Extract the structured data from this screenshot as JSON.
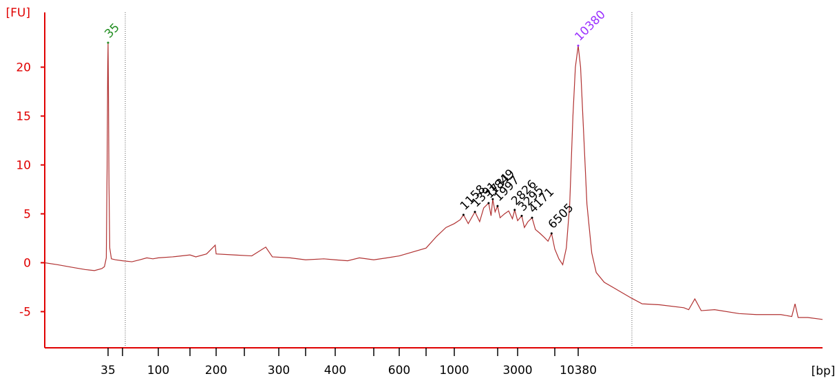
{
  "chart_data": {
    "type": "line",
    "y_label": "[FU]",
    "x_label": "[bp]",
    "ylim": [
      -8.7,
      25.6
    ],
    "yticks": [
      -5,
      0,
      5,
      10,
      15,
      20
    ],
    "xlim": [
      7.3,
      600000
    ],
    "xticks": [
      35,
      100,
      200,
      300,
      400,
      600,
      1000,
      3000,
      10380
    ],
    "xminorticks": [
      50,
      150,
      250,
      350,
      500,
      700,
      2000,
      7000
    ],
    "axis_color": "#e00000",
    "series": [
      {
        "color": "#b03030",
        "x": [
          7.3,
          10,
          15,
          20,
          25,
          30,
          32,
          33.5,
          34.2,
          34.7,
          35,
          35.3,
          35.8,
          36.5,
          38,
          42,
          50,
          60,
          70,
          80,
          90,
          100,
          120,
          150,
          160,
          180,
          198,
          200,
          230,
          260,
          280,
          290,
          320,
          350,
          380,
          400,
          430,
          460,
          500,
          550,
          600,
          700,
          800,
          900,
          1000,
          1100,
          1158,
          1250,
          1391,
          1500,
          1600,
          1731,
          1800,
          1849,
          1920,
          1997,
          2100,
          2300,
          2500,
          2700,
          2826,
          3000,
          3295,
          3500,
          3800,
          4171,
          4500,
          5000,
          5500,
          6000,
          6505,
          7000,
          7500,
          8000,
          8500,
          9000,
          9500,
          9900,
          10380,
          10800,
          11300,
          12000,
          13000,
          14000,
          16000,
          20000,
          25000,
          30000,
          40000,
          60000,
          65000,
          72000,
          80000,
          100000,
          150000,
          200000,
          300000,
          360000,
          380000,
          400000,
          470000,
          600000
        ],
        "values": [
          0.0,
          -0.2,
          -0.5,
          -0.7,
          -0.8,
          -0.6,
          -0.4,
          0.5,
          10,
          20,
          22.5,
          18,
          8,
          1.5,
          0.4,
          0.3,
          0.2,
          0.1,
          0.3,
          0.5,
          0.4,
          0.5,
          0.6,
          0.8,
          0.6,
          0.9,
          1.8,
          0.9,
          0.8,
          0.7,
          1.6,
          0.6,
          0.5,
          0.3,
          0.4,
          0.3,
          0.2,
          0.5,
          0.3,
          0.5,
          0.7,
          1.5,
          2.7,
          3.6,
          4.0,
          4.4,
          4.9,
          4.0,
          5.2,
          4.2,
          5.6,
          6.1,
          4.8,
          6.5,
          5.2,
          5.8,
          4.6,
          5.0,
          5.3,
          4.5,
          5.4,
          4.3,
          4.8,
          3.6,
          4.2,
          4.6,
          3.4,
          3.0,
          2.6,
          2.2,
          3.0,
          1.4,
          0.4,
          -0.2,
          1.5,
          6,
          15,
          20,
          22.2,
          20,
          14,
          6,
          1,
          -1,
          -2,
          -2.8,
          -3.6,
          -4.2,
          -4.3,
          -4.6,
          -4.8,
          -3.7,
          -4.9,
          -4.8,
          -5.2,
          -5.3,
          -5.3,
          -5.5,
          -4.2,
          -5.6,
          -5.6,
          -5.8
        ]
      }
    ],
    "peaks": {
      "x": [
        35,
        1158,
        1391,
        1731,
        1849,
        1997,
        2826,
        3295,
        4171,
        6505,
        10380
      ],
      "values": [
        22.5,
        4.9,
        5.2,
        6.1,
        6.5,
        5.8,
        5.4,
        4.8,
        4.6,
        3.0,
        22.2
      ],
      "colors": [
        "#1e8c1e",
        "#000000",
        "#000000",
        "#000000",
        "#000000",
        "#000000",
        "#000000",
        "#000000",
        "#000000",
        "#000000",
        "#9b30ff"
      ]
    }
  }
}
